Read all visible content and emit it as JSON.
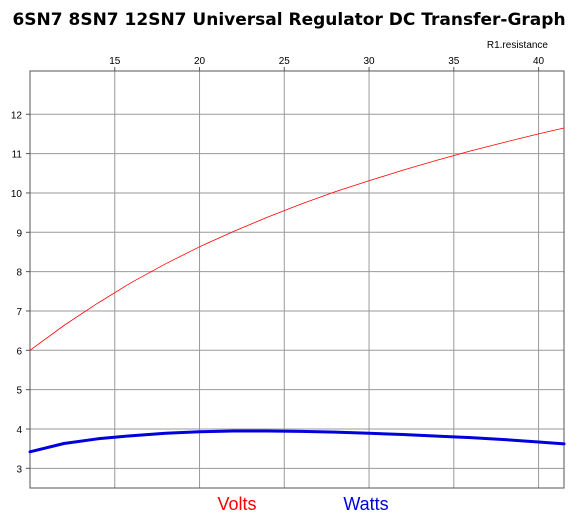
{
  "chart_data": {
    "type": "line",
    "title": "6SN7 8SN7 12SN7 Universal Regulator DC Transfer-Graph",
    "xlabel": "R1.resistance",
    "ylabel": "",
    "xlim": [
      10,
      41.5
    ],
    "ylim": [
      2.5,
      13.1
    ],
    "xticks": [
      15,
      20,
      25,
      30,
      35,
      40
    ],
    "yticks": [
      3,
      4,
      5,
      6,
      7,
      8,
      9,
      10,
      11,
      12
    ],
    "x_axis_position": "top",
    "grid": true,
    "legend_placement": "bottom-center",
    "series": [
      {
        "name": "Volts",
        "color": "#ff0000",
        "x": [
          10,
          12,
          14,
          16,
          18,
          20,
          22,
          24,
          26,
          28,
          30,
          32,
          34,
          36,
          38,
          40,
          41.5
        ],
        "y": [
          6.0,
          6.63,
          7.2,
          7.73,
          8.2,
          8.63,
          9.02,
          9.38,
          9.72,
          10.03,
          10.31,
          10.58,
          10.83,
          11.07,
          11.29,
          11.5,
          11.65
        ]
      },
      {
        "name": "Watts",
        "color": "#0000dd",
        "x": [
          10,
          12,
          14,
          16,
          18,
          20,
          22,
          24,
          26,
          28,
          30,
          32,
          34,
          36,
          38,
          40,
          41.5
        ],
        "y": [
          3.42,
          3.63,
          3.75,
          3.83,
          3.89,
          3.93,
          3.95,
          3.95,
          3.94,
          3.92,
          3.89,
          3.86,
          3.82,
          3.78,
          3.73,
          3.67,
          3.62
        ]
      }
    ]
  }
}
